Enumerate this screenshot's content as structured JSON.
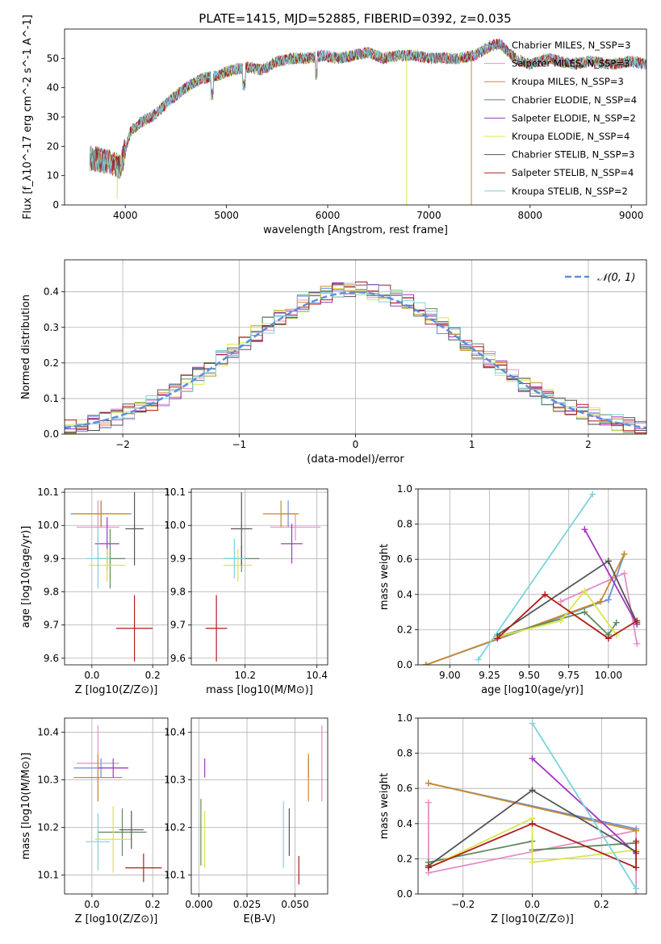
{
  "figure_title": "PLATE=1415, MJD=52885, FIBERID=0392, z=0.035",
  "colors": {
    "Chabrier MILES": "#6a8fd8",
    "Salpeter MILES": "#e58fc4",
    "Kroupa MILES": "#c98a2a",
    "Chabrier ELODIE": "#5e8a5e",
    "Salpeter ELODIE": "#a335c0",
    "Kroupa ELODIE": "#d9e64a",
    "Chabrier STELIB": "#555555",
    "Salpeter STELIB": "#b01c1c",
    "Kroupa STELIB": "#7dd3dc",
    "normal_fit": "#5b8fd8"
  },
  "chart_data": [
    {
      "id": "spectrum",
      "type": "line",
      "title": "PLATE=1415, MJD=52885, FIBERID=0392, z=0.035",
      "xlabel": "wavelength [Angstrom, rest frame]",
      "ylabel": "Flux [f_λ10^-17 erg cm^-2 s^-1 A^-1]",
      "xlim": [
        3400,
        9150
      ],
      "ylim": [
        0,
        60
      ],
      "xticks": [
        "4000",
        "5000",
        "6000",
        "7000",
        "8000",
        "9000"
      ],
      "yticks": [
        "0",
        "10",
        "20",
        "30",
        "40",
        "50"
      ],
      "grid": false,
      "legend_placement": "upper-right",
      "legend": [
        "Chabrier MILES, N_SSP=3",
        "Salpeter MILES, N_SSP=3",
        "Kroupa MILES, N_SSP=3",
        "Chabrier ELODIE, N_SSP=4",
        "Salpeter ELODIE, N_SSP=2",
        "Kroupa ELODIE, N_SSP=4",
        "Chabrier STELIB, N_SSP=3",
        "Salpeter STELIB, N_SSP=4",
        "Kroupa STELIB, N_SSP=2"
      ],
      "envelope": {
        "x": [
          3650,
          3800,
          3950,
          4050,
          4150,
          4300,
          4450,
          4600,
          4750,
          4900,
          5050,
          5200,
          5350,
          5500,
          5650,
          5800,
          5950,
          6100,
          6250,
          6400,
          6550,
          6700,
          6850,
          7000,
          7150,
          7300,
          7450,
          7600,
          7700,
          7850,
          8000,
          8200,
          8400,
          8600,
          8800,
          9000,
          9150
        ],
        "y": [
          16,
          15,
          13,
          25,
          28,
          31,
          36,
          40,
          43,
          44,
          46,
          47,
          46,
          49,
          50,
          50,
          51,
          50,
          51,
          52,
          50,
          51,
          51,
          50,
          50,
          50,
          51,
          54,
          55,
          50,
          48,
          50,
          48,
          49,
          48,
          49,
          48
        ]
      },
      "drops": [
        {
          "series": "Kroupa MILES",
          "x": 7420,
          "y_from": 50,
          "y_to": 0
        },
        {
          "series": "Kroupa ELODIE",
          "x": 6780,
          "y_from": 50,
          "y_to": 0
        },
        {
          "series": "Kroupa ELODIE",
          "x": 3920,
          "y_from": 12,
          "y_to": 2
        }
      ]
    },
    {
      "id": "residuals",
      "type": "area",
      "xlabel": "(data-model)/error",
      "ylabel": "Normed distribution",
      "xlim": [
        -2.5,
        2.5
      ],
      "ylim": [
        0,
        0.49
      ],
      "xticks": [
        "−2",
        "−1",
        "0",
        "1",
        "2"
      ],
      "yticks": [
        "0.0",
        "0.1",
        "0.2",
        "0.3",
        "0.4"
      ],
      "grid": true,
      "legend_placement": "upper-right",
      "legend": [
        "𝒩(0, 1)"
      ],
      "bin_width": 0.1,
      "histogram_series": [
        "Chabrier MILES",
        "Salpeter MILES",
        "Kroupa MILES",
        "Chabrier ELODIE",
        "Salpeter ELODIE",
        "Kroupa ELODIE",
        "Chabrier STELIB",
        "Salpeter STELIB",
        "Kroupa STELIB"
      ]
    },
    {
      "id": "age-vs-Z",
      "type": "scatter",
      "xlabel": "Z [log10(Z/Z⊙)]",
      "ylabel": "age [log10(age/yr)]",
      "xlim": [
        -0.09,
        0.25
      ],
      "ylim": [
        9.58,
        10.11
      ],
      "xticks": [
        "0.0",
        "0.2"
      ],
      "yticks": [
        "9.6",
        "9.7",
        "9.8",
        "9.9",
        "10.0",
        "10.1"
      ],
      "grid": true,
      "points": [
        {
          "series": "Chabrier MILES",
          "x": 0.03,
          "y": 10.035,
          "xerr": 0.1,
          "yerr": 0.04
        },
        {
          "series": "Salpeter MILES",
          "x": 0.02,
          "y": 9.995,
          "xerr": 0.07,
          "yerr": 0.08
        },
        {
          "series": "Kroupa MILES",
          "x": 0.03,
          "y": 10.035,
          "xerr": 0.09,
          "yerr": 0.04
        },
        {
          "series": "Chabrier ELODIE",
          "x": 0.06,
          "y": 9.9,
          "xerr": 0.05,
          "yerr": 0.09
        },
        {
          "series": "Salpeter ELODIE",
          "x": 0.05,
          "y": 9.945,
          "xerr": 0.04,
          "yerr": 0.08
        },
        {
          "series": "Kroupa ELODIE",
          "x": 0.05,
          "y": 9.88,
          "xerr": 0.06,
          "yerr": 0.05
        },
        {
          "series": "Chabrier STELIB",
          "x": 0.14,
          "y": 9.99,
          "xerr": 0.03,
          "yerr": 0.11
        },
        {
          "series": "Salpeter STELIB",
          "x": 0.14,
          "y": 9.69,
          "xerr": 0.06,
          "yerr": 0.1
        },
        {
          "series": "Kroupa STELIB",
          "x": 0.02,
          "y": 9.9,
          "xerr": 0.04,
          "yerr": 0.09
        }
      ]
    },
    {
      "id": "age-vs-mass",
      "type": "scatter",
      "xlabel": "mass [log10(M/M⊙)]",
      "ylabel": "",
      "xlim": [
        10.05,
        10.43
      ],
      "ylim": [
        9.58,
        10.11
      ],
      "xticks": [
        "10.2",
        "10.4"
      ],
      "yticks": [
        "9.6",
        "9.7",
        "9.8",
        "9.9",
        "10.0",
        "10.1"
      ],
      "grid": true,
      "points": [
        {
          "series": "Chabrier MILES",
          "x": 10.32,
          "y": 10.035,
          "xerr": 0.02,
          "yerr": 0.04
        },
        {
          "series": "Salpeter MILES",
          "x": 10.34,
          "y": 9.995,
          "xerr": 0.07,
          "yerr": 0.04
        },
        {
          "series": "Kroupa MILES",
          "x": 10.3,
          "y": 10.035,
          "xerr": 0.05,
          "yerr": 0.04
        },
        {
          "series": "Chabrier ELODIE",
          "x": 10.19,
          "y": 9.9,
          "xerr": 0.05,
          "yerr": 0.04
        },
        {
          "series": "Salpeter ELODIE",
          "x": 10.33,
          "y": 9.945,
          "xerr": 0.03,
          "yerr": 0.06
        },
        {
          "series": "Kroupa ELODIE",
          "x": 10.18,
          "y": 9.88,
          "xerr": 0.04,
          "yerr": 0.05
        },
        {
          "series": "Chabrier STELIB",
          "x": 10.19,
          "y": 9.99,
          "xerr": 0.03,
          "yerr": 0.11
        },
        {
          "series": "Salpeter STELIB",
          "x": 10.12,
          "y": 9.69,
          "xerr": 0.03,
          "yerr": 0.1
        },
        {
          "series": "Kroupa STELIB",
          "x": 10.17,
          "y": 9.9,
          "xerr": 0.03,
          "yerr": 0.06
        }
      ]
    },
    {
      "id": "weight-vs-age",
      "type": "line",
      "xlabel": "age [log10(age/yr)]",
      "ylabel": "mass weight",
      "xlim": [
        8.8,
        10.24
      ],
      "ylim": [
        0,
        1
      ],
      "xticks": [
        "9.00",
        "9.25",
        "9.50",
        "9.75",
        "10.00"
      ],
      "yticks": [
        "0.0",
        "0.2",
        "0.4",
        "0.6",
        "0.8",
        "1.0"
      ],
      "grid": true,
      "series": [
        {
          "name": "Chabrier MILES",
          "x": [
            8.85,
            10.0,
            10.1
          ],
          "y": [
            0.0,
            0.37,
            0.63
          ]
        },
        {
          "name": "Salpeter MILES",
          "x": [
            9.7,
            10.1,
            10.18
          ],
          "y": [
            0.36,
            0.52,
            0.12
          ]
        },
        {
          "name": "Kroupa MILES",
          "x": [
            8.85,
            9.95,
            10.1
          ],
          "y": [
            0.0,
            0.36,
            0.63
          ]
        },
        {
          "name": "Chabrier ELODIE",
          "x": [
            9.3,
            9.85,
            10.0,
            10.05
          ],
          "y": [
            0.16,
            0.3,
            0.17,
            0.24
          ]
        },
        {
          "name": "Salpeter ELODIE",
          "x": [
            9.85,
            10.18
          ],
          "y": [
            0.77,
            0.23
          ]
        },
        {
          "name": "Kroupa ELODIE",
          "x": [
            9.3,
            9.7,
            9.85,
            10.05
          ],
          "y": [
            0.16,
            0.25,
            0.42,
            0.17
          ]
        },
        {
          "name": "Chabrier STELIB",
          "x": [
            9.3,
            10.0,
            10.18
          ],
          "y": [
            0.17,
            0.59,
            0.24
          ]
        },
        {
          "name": "Salpeter STELIB",
          "x": [
            9.3,
            9.6,
            10.0,
            10.18
          ],
          "y": [
            0.15,
            0.4,
            0.15,
            0.25
          ]
        },
        {
          "name": "Kroupa STELIB",
          "x": [
            9.18,
            9.9
          ],
          "y": [
            0.03,
            0.97
          ]
        }
      ]
    },
    {
      "id": "mass-vs-Z",
      "type": "scatter",
      "xlabel": "Z [log10(Z/Z⊙)]",
      "ylabel": "mass [log10(M/M⊙)]",
      "xlim": [
        -0.09,
        0.25
      ],
      "ylim": [
        10.06,
        10.43
      ],
      "xticks": [
        "0.0",
        "0.2"
      ],
      "yticks": [
        "10.1",
        "10.2",
        "10.3",
        "10.4"
      ],
      "grid": true,
      "points": [
        {
          "series": "Chabrier MILES",
          "x": 0.03,
          "y": 10.325,
          "xerr": 0.09,
          "yerr": 0.02
        },
        {
          "series": "Salpeter MILES",
          "x": 0.02,
          "y": 10.335,
          "xerr": 0.07,
          "yerr": 0.08
        },
        {
          "series": "Kroupa MILES",
          "x": 0.02,
          "y": 10.305,
          "xerr": 0.08,
          "yerr": 0.05
        },
        {
          "series": "Chabrier ELODIE",
          "x": 0.1,
          "y": 10.19,
          "xerr": 0.08,
          "yerr": 0.05
        },
        {
          "series": "Salpeter ELODIE",
          "x": 0.07,
          "y": 10.325,
          "xerr": 0.05,
          "yerr": 0.02
        },
        {
          "series": "Kroupa ELODIE",
          "x": 0.07,
          "y": 10.175,
          "xerr": 0.06,
          "yerr": 0.07
        },
        {
          "series": "Chabrier STELIB",
          "x": 0.13,
          "y": 10.195,
          "xerr": 0.04,
          "yerr": 0.04
        },
        {
          "series": "Salpeter STELIB",
          "x": 0.17,
          "y": 10.115,
          "xerr": 0.06,
          "yerr": 0.03
        },
        {
          "series": "Kroupa STELIB",
          "x": 0.02,
          "y": 10.17,
          "xerr": 0.04,
          "yerr": 0.06
        }
      ]
    },
    {
      "id": "mass-vs-ebv",
      "type": "scatter",
      "xlabel": "E(B-V)",
      "ylabel": "",
      "xlim": [
        -0.004,
        0.067
      ],
      "ylim": [
        10.06,
        10.43
      ],
      "xticks": [
        "0.000",
        "0.025",
        "0.050"
      ],
      "yticks": [
        "10.1",
        "10.2",
        "10.3",
        "10.4"
      ],
      "grid": true,
      "points": [
        {
          "series": "Chabrier MILES",
          "x": 0.057,
          "y": 10.325,
          "yerr": 0.02
        },
        {
          "series": "Salpeter MILES",
          "x": 0.064,
          "y": 10.335,
          "yerr": 0.08
        },
        {
          "series": "Kroupa MILES",
          "x": 0.057,
          "y": 10.305,
          "yerr": 0.05
        },
        {
          "series": "Chabrier ELODIE",
          "x": 0.001,
          "y": 10.19,
          "yerr": 0.07
        },
        {
          "series": "Salpeter ELODIE",
          "x": 0.003,
          "y": 10.325,
          "yerr": 0.02
        },
        {
          "series": "Kroupa ELODIE",
          "x": 0.003,
          "y": 10.175,
          "yerr": 0.06
        },
        {
          "series": "Chabrier STELIB",
          "x": 0.047,
          "y": 10.19,
          "yerr": 0.05
        },
        {
          "series": "Salpeter STELIB",
          "x": 0.052,
          "y": 10.11,
          "yerr": 0.03
        },
        {
          "series": "Kroupa STELIB",
          "x": 0.044,
          "y": 10.185,
          "yerr": 0.07
        }
      ]
    },
    {
      "id": "weight-vs-Z",
      "type": "line",
      "xlabel": "Z [log10(Z/Z⊙)]",
      "ylabel": "mass weight",
      "xlim": [
        -0.33,
        0.33
      ],
      "ylim": [
        0,
        1
      ],
      "xticks": [
        "−0.2",
        "0.0",
        "0.2"
      ],
      "yticks": [
        "0.0",
        "0.2",
        "0.4",
        "0.6",
        "0.8",
        "1.0"
      ],
      "grid": true,
      "series": [
        {
          "name": "Chabrier MILES",
          "x": [
            -0.3,
            0.3
          ],
          "y": [
            0.63,
            0.37
          ]
        },
        {
          "name": "Salpeter MILES",
          "x": [
            -0.3,
            -0.3,
            0.3,
            0.3
          ],
          "y": [
            0.52,
            0.12,
            0.36,
            0.0
          ]
        },
        {
          "name": "Kroupa MILES",
          "x": [
            -0.3,
            0.3
          ],
          "y": [
            0.63,
            0.36
          ]
        },
        {
          "name": "Chabrier ELODIE",
          "x": [
            -0.3,
            0.0,
            0.0,
            0.3
          ],
          "y": [
            0.18,
            0.3,
            0.25,
            0.29
          ]
        },
        {
          "name": "Salpeter ELODIE",
          "x": [
            0.0,
            0.3
          ],
          "y": [
            0.77,
            0.23
          ]
        },
        {
          "name": "Kroupa ELODIE",
          "x": [
            -0.3,
            0.0,
            0.0,
            0.3
          ],
          "y": [
            0.15,
            0.43,
            0.18,
            0.25
          ]
        },
        {
          "name": "Chabrier STELIB",
          "x": [
            -0.3,
            0.0,
            0.3
          ],
          "y": [
            0.16,
            0.59,
            0.24
          ]
        },
        {
          "name": "Salpeter STELIB",
          "x": [
            -0.3,
            0.0,
            0.3,
            0.3
          ],
          "y": [
            0.15,
            0.4,
            0.15,
            0.3
          ]
        },
        {
          "name": "Kroupa STELIB",
          "x": [
            0.0,
            0.3
          ],
          "y": [
            0.97,
            0.03
          ]
        }
      ]
    }
  ]
}
